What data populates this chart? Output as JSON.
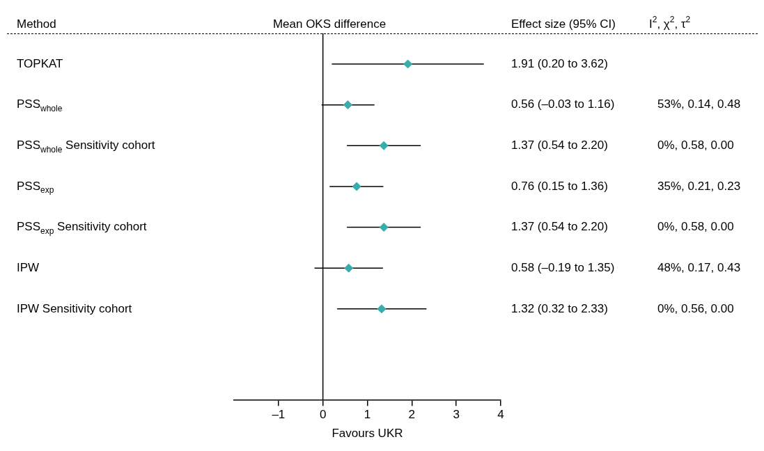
{
  "chart_data": {
    "type": "scatter",
    "title": "Mean OKS difference",
    "xlabel": "Favours UKR",
    "categories": [
      "TOPKAT",
      "PSS$_{whole}$",
      "PSS$_{whole}$ Sensitivity cohort",
      "PSS$_{exp}$",
      "PSS$_{exp}$ Sensitivity cohort",
      "IPW",
      "IPW Sensitivity cohort"
    ],
    "values": [
      1.91,
      0.56,
      1.37,
      0.76,
      1.37,
      0.58,
      1.32
    ],
    "errors": [
      [
        0.2,
        3.62
      ],
      [
        -0.03,
        1.16
      ],
      [
        0.54,
        2.2
      ],
      [
        0.15,
        1.36
      ],
      [
        0.54,
        2.2
      ],
      [
        -0.19,
        1.35
      ],
      [
        0.32,
        2.33
      ]
    ],
    "color": "#35aead",
    "marker": "diamond",
    "orientation": "horizontal",
    "xlim": [
      -2,
      4
    ],
    "xticks": [
      {
        "value": -1,
        "label": "–1"
      },
      0,
      1,
      2,
      3,
      4
    ],
    "ref_lines": [
      {
        "axis": "x",
        "value": 0
      }
    ],
    "annotations": [
      "Method",
      "Effect size (95% CI)",
      "I$^{2}$, χ$^{2}$, τ$^{2}$",
      "1.91 (0.20 to 3.62)",
      "0.56 (–0.03 to 1.16)",
      "1.37 (0.54 to 2.20)",
      "0.76 (0.15 to 1.36)",
      "1.37 (0.54 to 2.20)",
      "0.58 (–0.19 to 1.35)",
      "1.32 (0.32 to 2.33)",
      "53%, 0.14, 0.48",
      "0%, 0.58, 0.00",
      "35%, 0.21, 0.23",
      "0%, 0.58, 0.00",
      "48%, 0.17, 0.43",
      "0%, 0.56, 0.00"
    ]
  }
}
